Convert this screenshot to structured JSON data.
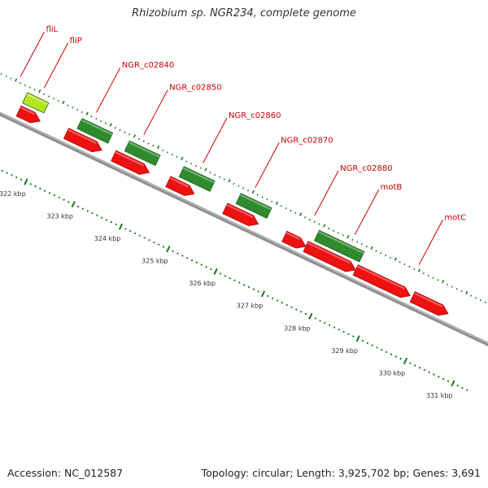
{
  "title": "Rhizobium sp. NGR234, complete genome",
  "footer": {
    "accession": "Accession: NC_012587",
    "summary": "Topology: circular; Length: 3,925,702 bp; Genes: 3,691"
  },
  "colors": {
    "forward_gene": "#2e8b2e",
    "forward_gene_highlight": "#b5e61d",
    "reverse_gene": "#ee1111",
    "label": "#cc0000",
    "backbone": "#888888",
    "tick": "#1c7a1c"
  },
  "genes": [
    {
      "name": "fliL",
      "strand": "reverse",
      "start_kbp": 321.3,
      "end_kbp": 321.75,
      "arrow": true
    },
    {
      "name": "",
      "strand": "forward",
      "start_kbp": 321.3,
      "end_kbp": 321.75,
      "highlight": true
    },
    {
      "name": "fliP",
      "strand": "reverse",
      "start_kbp": 322.3,
      "end_kbp": 323.05,
      "arrow": true
    },
    {
      "name": "",
      "strand": "forward",
      "start_kbp": 322.45,
      "end_kbp": 323.1
    },
    {
      "name": "NGR_c02840",
      "strand": "reverse",
      "start_kbp": 323.3,
      "end_kbp": 324.05,
      "arrow": true
    },
    {
      "name": "",
      "strand": "forward",
      "start_kbp": 323.45,
      "end_kbp": 324.1
    },
    {
      "name": "NGR_c02850",
      "strand": "reverse",
      "start_kbp": 324.45,
      "end_kbp": 325.0,
      "arrow": true
    },
    {
      "name": "",
      "strand": "forward",
      "start_kbp": 324.6,
      "end_kbp": 325.25
    },
    {
      "name": "NGR_c02860",
      "strand": "reverse",
      "start_kbp": 325.65,
      "end_kbp": 326.35,
      "arrow": true
    },
    {
      "name": "",
      "strand": "forward",
      "start_kbp": 325.8,
      "end_kbp": 326.45
    },
    {
      "name": "NGR_c02870",
      "strand": "reverse",
      "start_kbp": 326.9,
      "end_kbp": 327.35,
      "arrow": true
    },
    {
      "name": "NGR_c02880",
      "strand": "reverse",
      "start_kbp": 327.35,
      "end_kbp": 328.4,
      "arrow": true
    },
    {
      "name": "",
      "strand": "forward",
      "start_kbp": 327.45,
      "end_kbp": 328.4
    },
    {
      "name": "motB",
      "strand": "reverse",
      "start_kbp": 328.4,
      "end_kbp": 329.55,
      "arrow": true
    },
    {
      "name": "motC",
      "strand": "reverse",
      "start_kbp": 329.6,
      "end_kbp": 330.35,
      "arrow": true
    }
  ],
  "labels": [
    {
      "text": "fliL",
      "kbp": 321.05
    },
    {
      "text": "fliP",
      "kbp": 321.55
    },
    {
      "text": "NGR_c02840",
      "kbp": 322.65
    },
    {
      "text": "NGR_c02850",
      "kbp": 323.65
    },
    {
      "text": "NGR_c02860",
      "kbp": 324.9
    },
    {
      "text": "NGR_c02870",
      "kbp": 326.0
    },
    {
      "text": "NGR_c02880",
      "kbp": 327.25
    },
    {
      "text": "motB",
      "kbp": 328.1
    },
    {
      "text": "motC",
      "kbp": 329.45
    }
  ],
  "kbp_ticks": [
    "322 kbp",
    "323 kbp",
    "324 kbp",
    "325 kbp",
    "326 kbp",
    "327 kbp",
    "328 kbp",
    "329 kbp",
    "330 kbp",
    "331 kbp"
  ]
}
